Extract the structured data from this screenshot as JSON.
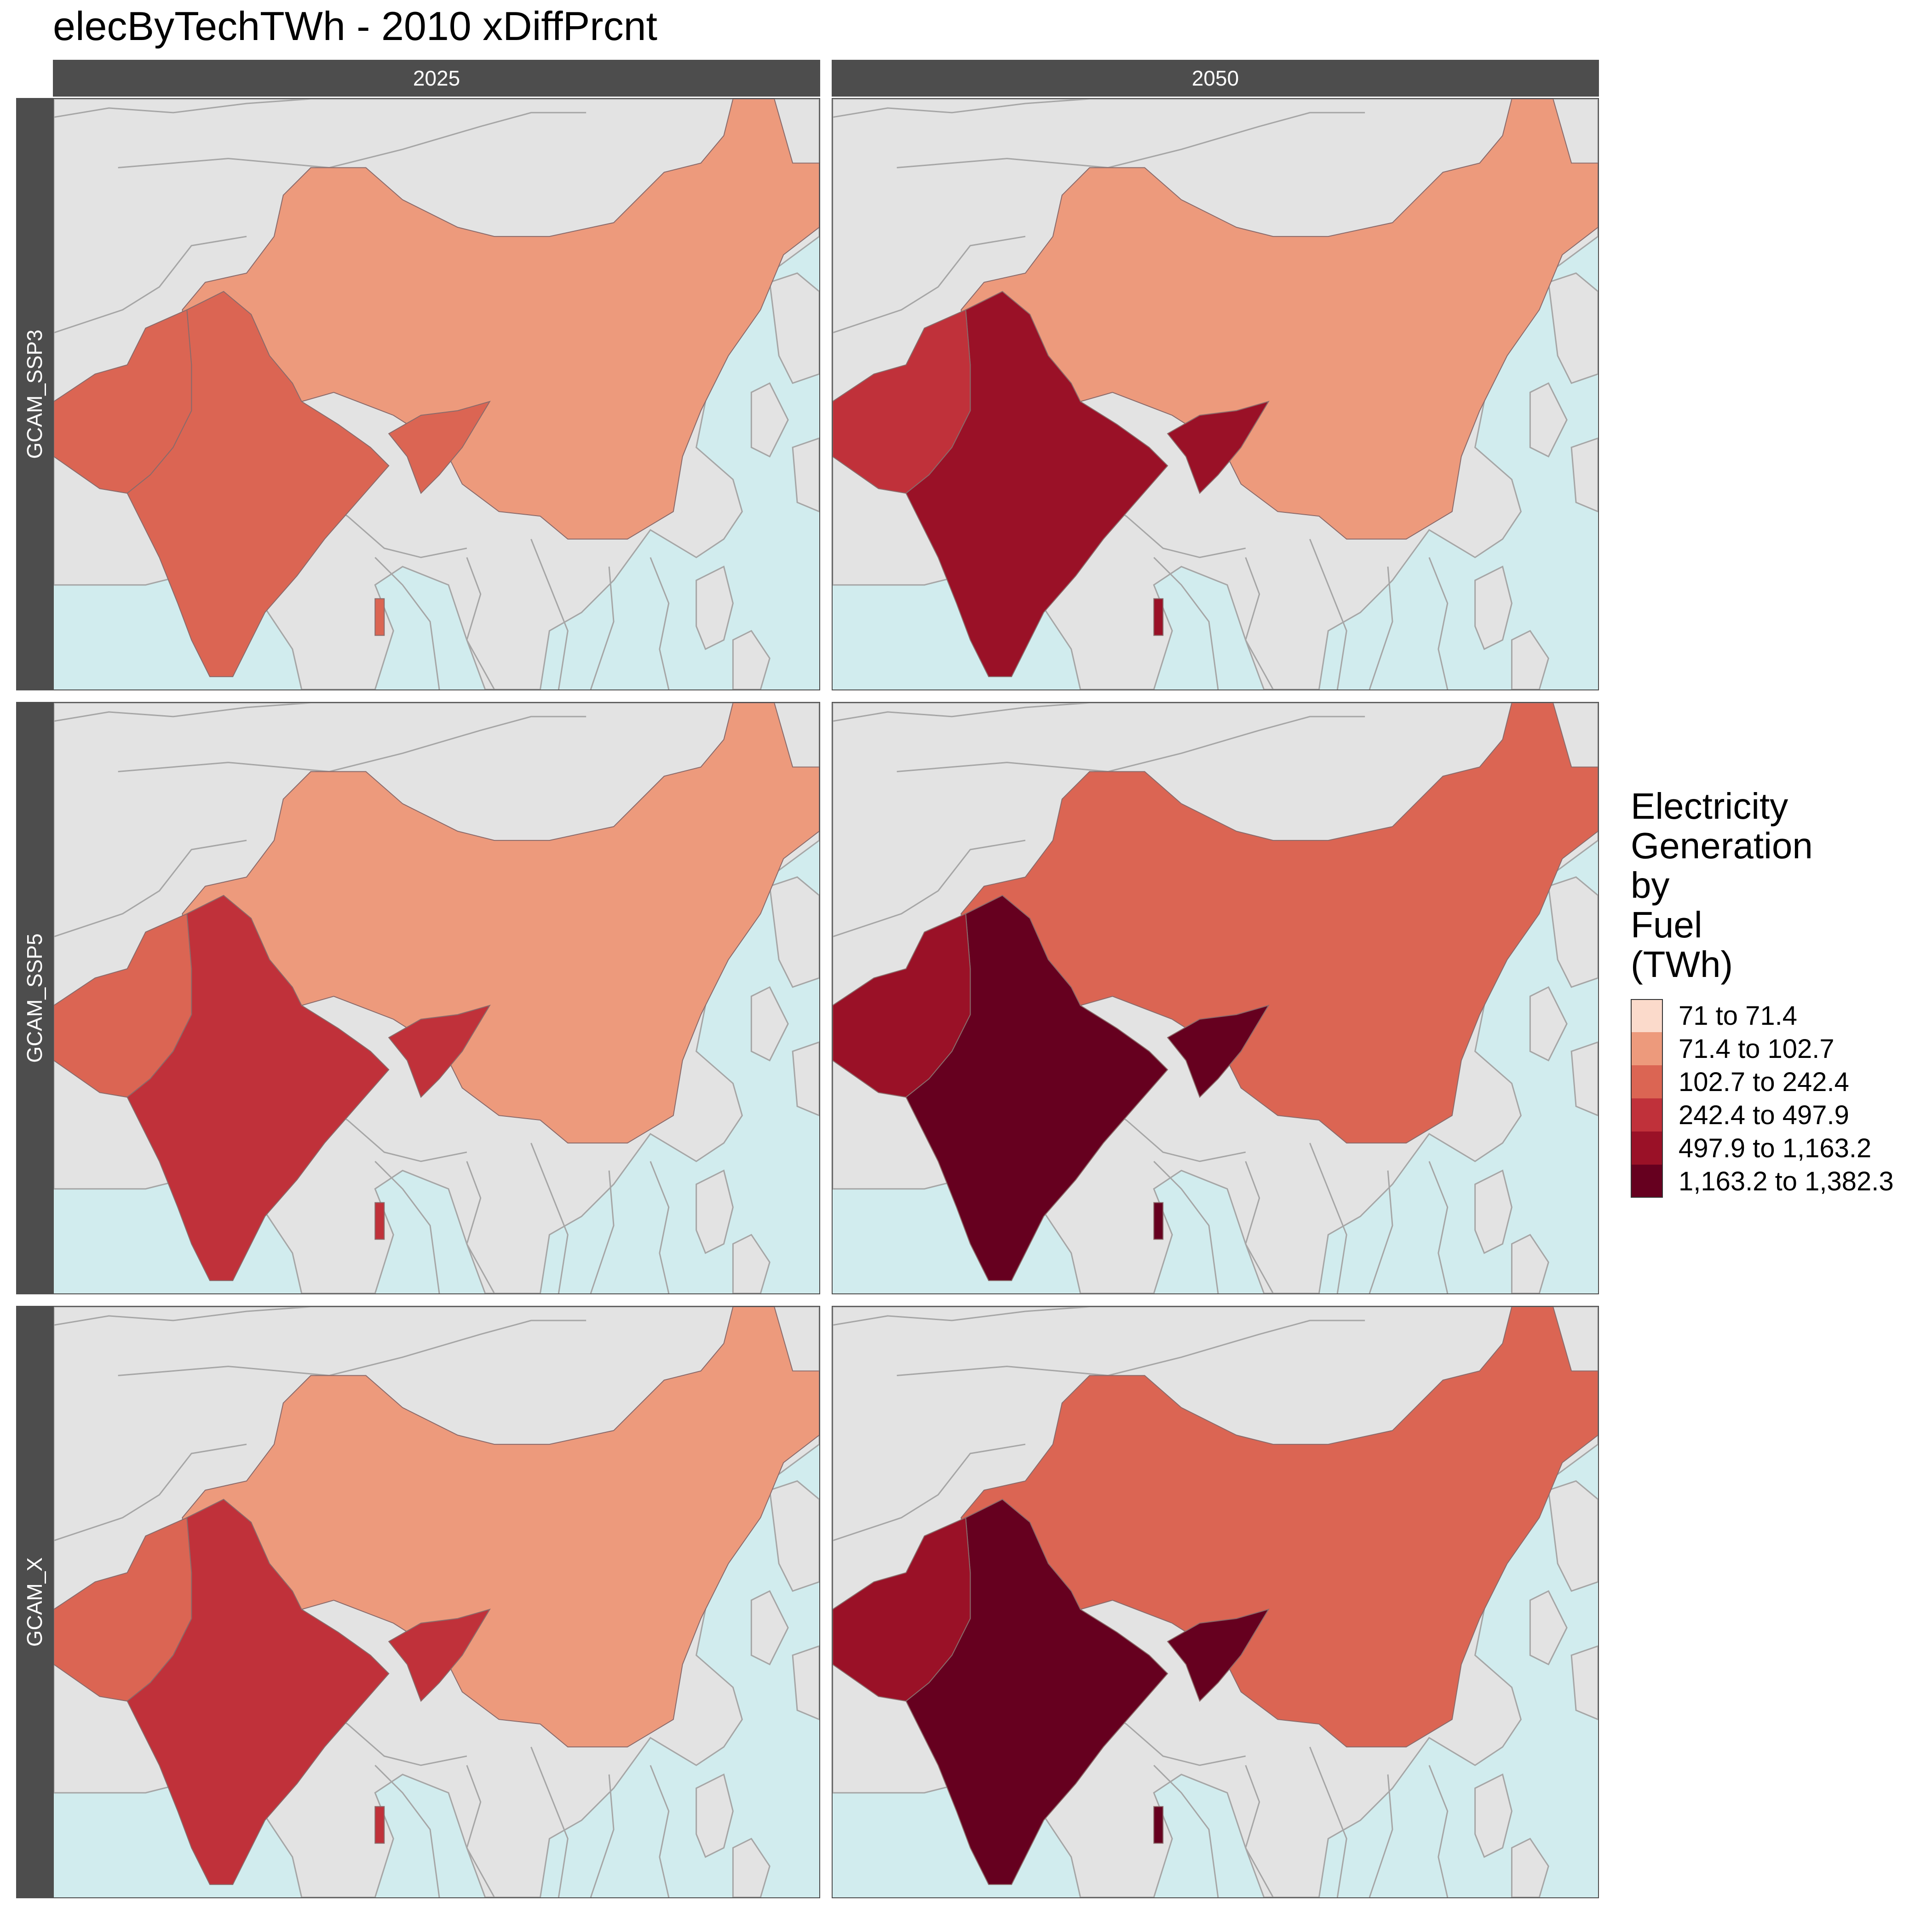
{
  "title": "elecByTechTWh - 2010 xDiffPrcnt",
  "columns": [
    "2025",
    "2050"
  ],
  "rows": [
    "GCAM_SSP3",
    "GCAM_SSP5",
    "GCAM_X"
  ],
  "legend": {
    "title": "Electricity Generation by Fuel (TWh)",
    "title_lines": [
      "Electricity",
      "Generation",
      "by",
      "Fuel",
      "(TWh)"
    ],
    "items": [
      {
        "label": "71 to 71.4",
        "color": "#fbdacb"
      },
      {
        "label": "71.4 to 102.7",
        "color": "#ed9a7c"
      },
      {
        "label": "102.7 to 242.4",
        "color": "#db6553"
      },
      {
        "label": "242.4 to 497.9",
        "color": "#c0313a"
      },
      {
        "label": "497.9 to 1,163.2",
        "color": "#9a1127"
      },
      {
        "label": "1,163.2 to 1,382.3",
        "color": "#66001f"
      }
    ]
  },
  "colors": {
    "ocean": "#d1ecee",
    "land": "#e3e3e3",
    "border": "#a6a6a6",
    "strip": "#4d4d4d"
  },
  "chart_data": {
    "type": "choropleth",
    "regions": [
      "China",
      "India",
      "Pakistan",
      "Bangladesh",
      "Sri Lanka"
    ],
    "panels": [
      {
        "row": "GCAM_SSP3",
        "col": "2025",
        "classes": {
          "China": "71.4 to 102.7",
          "India": "102.7 to 242.4",
          "Pakistan": "102.7 to 242.4",
          "Bangladesh": "102.7 to 242.4",
          "Sri Lanka": "102.7 to 242.4"
        }
      },
      {
        "row": "GCAM_SSP3",
        "col": "2050",
        "classes": {
          "China": "71.4 to 102.7",
          "India": "497.9 to 1,163.2",
          "Pakistan": "242.4 to 497.9",
          "Bangladesh": "497.9 to 1,163.2",
          "Sri Lanka": "497.9 to 1,163.2"
        }
      },
      {
        "row": "GCAM_SSP5",
        "col": "2025",
        "classes": {
          "China": "71.4 to 102.7",
          "India": "242.4 to 497.9",
          "Pakistan": "102.7 to 242.4",
          "Bangladesh": "242.4 to 497.9",
          "Sri Lanka": "242.4 to 497.9"
        }
      },
      {
        "row": "GCAM_SSP5",
        "col": "2050",
        "classes": {
          "China": "102.7 to 242.4",
          "India": "1,163.2 to 1,382.3",
          "Pakistan": "497.9 to 1,163.2",
          "Bangladesh": "1,163.2 to 1,382.3",
          "Sri Lanka": "1,163.2 to 1,382.3"
        }
      },
      {
        "row": "GCAM_X",
        "col": "2025",
        "classes": {
          "China": "71.4 to 102.7",
          "India": "242.4 to 497.9",
          "Pakistan": "102.7 to 242.4",
          "Bangladesh": "242.4 to 497.9",
          "Sri Lanka": "242.4 to 497.9"
        }
      },
      {
        "row": "GCAM_X",
        "col": "2050",
        "classes": {
          "China": "102.7 to 242.4",
          "India": "1,163.2 to 1,382.3",
          "Pakistan": "497.9 to 1,163.2",
          "Bangladesh": "1,163.2 to 1,382.3",
          "Sri Lanka": "1,163.2 to 1,382.3"
        }
      }
    ]
  }
}
